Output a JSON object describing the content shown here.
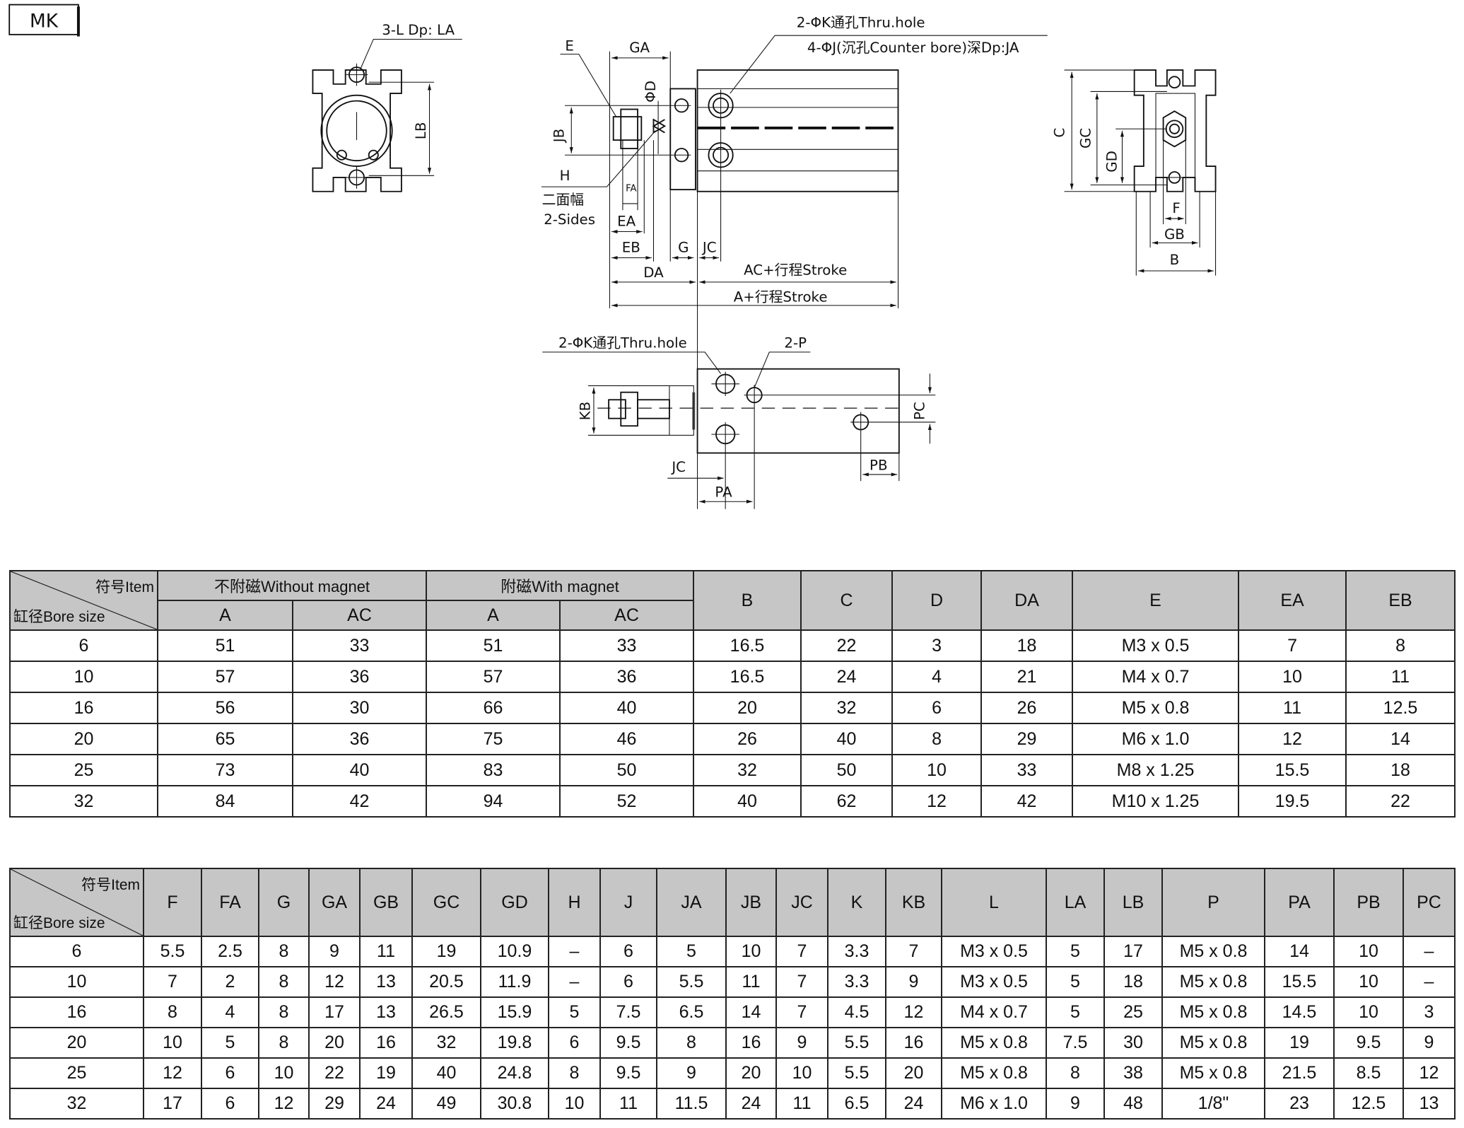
{
  "model_label": "MK",
  "drawing_labels": {
    "front": {
      "holes": "3-L Dp: LA",
      "lb": "LB"
    },
    "side": {
      "thru_hole": "2-ΦK通孔Thru.hole",
      "counter_bore": "4-ΦJ(沉孔Counter bore)深Dp:JA",
      "e": "E",
      "ga": "GA",
      "d": "ΦD",
      "jb": "JB",
      "h": "H",
      "sides_cn": "二面幅",
      "sides_en": "2-Sides",
      "fa": "FA",
      "ea": "EA",
      "eb": "EB",
      "g": "G",
      "jc": "JC",
      "da": "DA",
      "ac_stroke": "AC+行程Stroke",
      "a_stroke": "A+行程Stroke"
    },
    "end": {
      "c": "C",
      "gc": "GC",
      "gd": "GD",
      "f": "F",
      "gb": "GB",
      "b": "B"
    },
    "bottom": {
      "thru_hole": "2-ΦK通孔Thru.hole",
      "p": "2-P",
      "kb": "KB",
      "pc": "PC",
      "jc": "JC",
      "pa": "PA",
      "pb": "PB"
    }
  },
  "table1": {
    "corner_item": "符号Item",
    "corner_bore": "缸径Bore size",
    "group_without": "不附磁Without magnet",
    "group_with": "附磁With magnet",
    "sub_headers": [
      "A",
      "AC",
      "A",
      "AC"
    ],
    "columns": [
      "B",
      "C",
      "D",
      "DA",
      "E",
      "EA",
      "EB"
    ],
    "rows": [
      [
        "6",
        "51",
        "33",
        "51",
        "33",
        "16.5",
        "22",
        "3",
        "18",
        "M3 x 0.5",
        "7",
        "8"
      ],
      [
        "10",
        "57",
        "36",
        "57",
        "36",
        "16.5",
        "24",
        "4",
        "21",
        "M4 x 0.7",
        "10",
        "11"
      ],
      [
        "16",
        "56",
        "30",
        "66",
        "40",
        "20",
        "32",
        "6",
        "26",
        "M5 x 0.8",
        "11",
        "12.5"
      ],
      [
        "20",
        "65",
        "36",
        "75",
        "46",
        "26",
        "40",
        "8",
        "29",
        "M6 x 1.0",
        "12",
        "14"
      ],
      [
        "25",
        "73",
        "40",
        "83",
        "50",
        "32",
        "50",
        "10",
        "33",
        "M8 x 1.25",
        "15.5",
        "18"
      ],
      [
        "32",
        "84",
        "42",
        "94",
        "52",
        "40",
        "62",
        "12",
        "42",
        "M10 x 1.25",
        "19.5",
        "22"
      ]
    ]
  },
  "table2": {
    "corner_item": "符号Item",
    "corner_bore": "缸径Bore size",
    "columns": [
      "F",
      "FA",
      "G",
      "GA",
      "GB",
      "GC",
      "GD",
      "H",
      "J",
      "JA",
      "JB",
      "JC",
      "K",
      "KB",
      "L",
      "LA",
      "LB",
      "P",
      "PA",
      "PB",
      "PC"
    ],
    "rows": [
      [
        "6",
        "5.5",
        "2.5",
        "8",
        "9",
        "11",
        "19",
        "10.9",
        "–",
        "6",
        "5",
        "10",
        "7",
        "3.3",
        "7",
        "M3 x 0.5",
        "5",
        "17",
        "M5 x 0.8",
        "14",
        "10",
        "–"
      ],
      [
        "10",
        "7",
        "2",
        "8",
        "12",
        "13",
        "20.5",
        "11.9",
        "–",
        "6",
        "5.5",
        "11",
        "7",
        "3.3",
        "9",
        "M3 x 0.5",
        "5",
        "18",
        "M5 x 0.8",
        "15.5",
        "10",
        "–"
      ],
      [
        "16",
        "8",
        "4",
        "8",
        "17",
        "13",
        "26.5",
        "15.9",
        "5",
        "7.5",
        "6.5",
        "14",
        "7",
        "4.5",
        "12",
        "M4 x 0.7",
        "5",
        "25",
        "M5 x 0.8",
        "14.5",
        "10",
        "3"
      ],
      [
        "20",
        "10",
        "5",
        "8",
        "20",
        "16",
        "32",
        "19.8",
        "6",
        "9.5",
        "8",
        "16",
        "9",
        "5.5",
        "16",
        "M5 x 0.8",
        "7.5",
        "30",
        "M5 x 0.8",
        "19",
        "9.5",
        "9"
      ],
      [
        "25",
        "12",
        "6",
        "10",
        "22",
        "19",
        "40",
        "24.8",
        "8",
        "9.5",
        "9",
        "20",
        "10",
        "5.5",
        "20",
        "M5 x 0.8",
        "8",
        "38",
        "M5 x 0.8",
        "21.5",
        "8.5",
        "12"
      ],
      [
        "32",
        "17",
        "6",
        "12",
        "29",
        "24",
        "49",
        "30.8",
        "10",
        "11",
        "11.5",
        "24",
        "11",
        "6.5",
        "24",
        "M6 x 1.0",
        "9",
        "48",
        "1/8\"",
        "23",
        "12.5",
        "13"
      ]
    ]
  }
}
